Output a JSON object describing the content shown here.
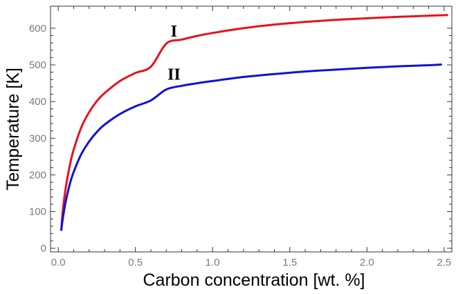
{
  "chart_data": {
    "type": "line",
    "title": "",
    "xlabel": "Carbon concentration [wt. %]",
    "ylabel": "Temperature [K]",
    "xlim": [
      -0.05,
      2.55
    ],
    "ylim": [
      -10,
      660
    ],
    "xticks": [
      0.0,
      0.5,
      1.0,
      1.5,
      2.0,
      2.5
    ],
    "xtick_labels": [
      "0.0",
      "0.5",
      "1.0",
      "1.5",
      "2.0",
      "2.5"
    ],
    "yticks": [
      0,
      100,
      200,
      300,
      400,
      500,
      600
    ],
    "ytick_labels": [
      "0",
      "100",
      "200",
      "300",
      "400",
      "500",
      "600"
    ],
    "grid": false,
    "legend": "none",
    "series": [
      {
        "name": "I",
        "color": "#e8101a",
        "x": [
          0.02,
          0.03,
          0.05,
          0.075,
          0.1,
          0.15,
          0.2,
          0.25,
          0.3,
          0.4,
          0.5,
          0.6,
          0.7,
          0.8,
          0.9,
          1.0,
          1.2,
          1.4,
          1.6,
          1.8,
          2.0,
          2.2,
          2.4,
          2.52
        ],
        "y": [
          50,
          104,
          168,
          226,
          269,
          330,
          371,
          401,
          423,
          456,
          478,
          495,
          558,
          569,
          579,
          587,
          600,
          610,
          617,
          623,
          627,
          631,
          634,
          636
        ]
      },
      {
        "name": "II",
        "color": "#1010d8",
        "x": [
          0.02,
          0.03,
          0.05,
          0.075,
          0.1,
          0.15,
          0.2,
          0.25,
          0.3,
          0.4,
          0.5,
          0.6,
          0.7,
          0.8,
          0.9,
          1.0,
          1.2,
          1.4,
          1.6,
          1.8,
          2.0,
          2.2,
          2.4,
          2.48
        ],
        "y": [
          50,
          82,
          130,
          175,
          208,
          257,
          291,
          317,
          337,
          366,
          387,
          403,
          433,
          443,
          450,
          456,
          467,
          475,
          482,
          487,
          492,
          496,
          499,
          501
        ]
      }
    ],
    "annotations": [
      {
        "text": "I",
        "x": 0.75,
        "y": 577
      },
      {
        "text": "II",
        "x": 0.75,
        "y": 460
      }
    ]
  }
}
